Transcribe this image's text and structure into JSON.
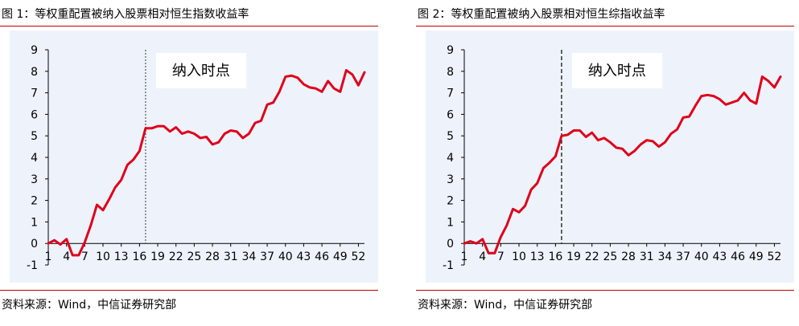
{
  "colors": {
    "accent_rule": "#c00000",
    "series_line": "#e0001b",
    "plot_background": "#eef3fb"
  },
  "charts": [
    {
      "title": "图 1：等权重配置被纳入股票相对恒生指数收益率",
      "source": "资料来源：Wind，中信证券研究部",
      "annotation": "纳入时点"
    },
    {
      "title": "图 2：等权重配置被纳入股票相对恒生综指收益率",
      "source": "资料来源：Wind，中信证券研究部",
      "annotation": "纳入时点"
    }
  ],
  "chart_data": [
    {
      "type": "line",
      "title": "图 1：等权重配置被纳入股票相对恒生指数收益率",
      "xlabel": "",
      "ylabel": "",
      "ylim": [
        -1,
        9
      ],
      "yticks": [
        -1,
        0,
        1,
        2,
        3,
        4,
        5,
        6,
        7,
        8,
        9
      ],
      "xlim": [
        1,
        53
      ],
      "xticks": [
        1,
        4,
        7,
        10,
        13,
        16,
        19,
        22,
        25,
        28,
        31,
        34,
        37,
        40,
        43,
        46,
        49,
        52
      ],
      "event_x": 17,
      "event_line_style": "dotted",
      "annotation": "纳入时点",
      "grid": false,
      "series": [
        {
          "x": [
            1,
            2,
            3,
            4,
            5,
            6,
            7,
            8,
            9,
            10,
            11,
            12,
            13,
            14,
            15,
            16,
            17,
            18,
            19,
            20,
            21,
            22,
            23,
            24,
            25,
            26,
            27,
            28,
            29,
            30,
            31,
            32,
            33,
            34,
            35,
            36,
            37,
            38,
            39,
            40,
            41,
            42,
            43,
            44,
            45,
            46,
            47,
            48,
            49,
            50,
            51,
            52,
            53
          ],
          "values": [
            0.0,
            0.15,
            -0.05,
            0.2,
            -0.55,
            -0.55,
            0.05,
            0.85,
            1.8,
            1.55,
            2.05,
            2.6,
            2.95,
            3.65,
            3.9,
            4.3,
            5.35,
            5.35,
            5.45,
            5.45,
            5.2,
            5.4,
            5.1,
            5.2,
            5.1,
            4.9,
            4.95,
            4.6,
            4.7,
            5.1,
            5.25,
            5.2,
            4.9,
            5.1,
            5.6,
            5.7,
            6.45,
            6.55,
            7.05,
            7.75,
            7.8,
            7.7,
            7.4,
            7.25,
            7.2,
            7.05,
            7.55,
            7.2,
            7.05,
            8.05,
            7.85,
            7.35,
            7.95
          ]
        }
      ]
    },
    {
      "type": "line",
      "title": "图 2：等权重配置被纳入股票相对恒生综指收益率",
      "xlabel": "",
      "ylabel": "",
      "ylim": [
        -1,
        9
      ],
      "yticks": [
        -1,
        0,
        1,
        2,
        3,
        4,
        5,
        6,
        7,
        8,
        9
      ],
      "xlim": [
        1,
        53
      ],
      "xticks": [
        1,
        4,
        7,
        10,
        13,
        16,
        19,
        22,
        25,
        28,
        31,
        34,
        37,
        40,
        43,
        46,
        49,
        52
      ],
      "event_x": 17,
      "event_line_style": "dashed",
      "annotation": "纳入时点",
      "grid": false,
      "series": [
        {
          "x": [
            1,
            2,
            3,
            4,
            5,
            6,
            7,
            8,
            9,
            10,
            11,
            12,
            13,
            14,
            15,
            16,
            17,
            18,
            19,
            20,
            21,
            22,
            23,
            24,
            25,
            26,
            27,
            28,
            29,
            30,
            31,
            32,
            33,
            34,
            35,
            36,
            37,
            38,
            39,
            40,
            41,
            42,
            43,
            44,
            45,
            46,
            47,
            48,
            49,
            50,
            51,
            52,
            53
          ],
          "values": [
            0.0,
            0.1,
            0.0,
            0.2,
            -0.45,
            -0.45,
            0.3,
            0.85,
            1.6,
            1.45,
            1.75,
            2.5,
            2.8,
            3.5,
            3.75,
            4.05,
            5.0,
            5.05,
            5.25,
            5.25,
            4.95,
            5.15,
            4.8,
            4.9,
            4.7,
            4.45,
            4.4,
            4.1,
            4.3,
            4.6,
            4.8,
            4.75,
            4.5,
            4.7,
            5.1,
            5.3,
            5.85,
            5.9,
            6.4,
            6.85,
            6.9,
            6.85,
            6.7,
            6.45,
            6.55,
            6.65,
            7.0,
            6.65,
            6.5,
            7.75,
            7.55,
            7.25,
            7.75
          ]
        }
      ]
    }
  ]
}
